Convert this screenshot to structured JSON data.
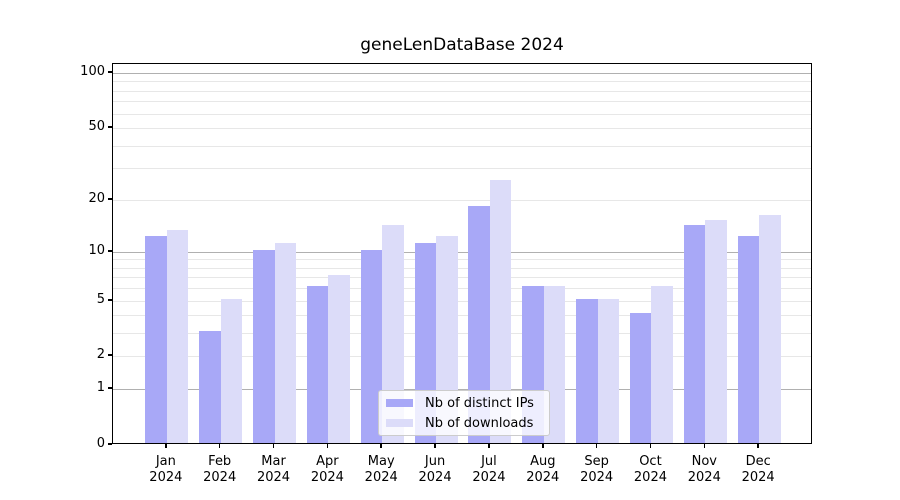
{
  "title": "geneLenDataBase 2024",
  "colors": {
    "distinct_ips_bar": "#a8a8f7",
    "downloads_bar": "#dcdcf9",
    "grid_major": "#b0b0b0",
    "grid_minor": "#e7e7e7",
    "axis": "#000000",
    "legend_border": "#cccccc",
    "legend_background": "rgba(255,255,255,0.8)"
  },
  "chart_data": {
    "type": "bar",
    "title": "geneLenDataBase 2024",
    "scale": "log1p",
    "grid": true,
    "legend_position": "lower center",
    "year": "2024",
    "categories": [
      "Jan",
      "Feb",
      "Mar",
      "Apr",
      "May",
      "Jun",
      "Jul",
      "Aug",
      "Sep",
      "Oct",
      "Nov",
      "Dec"
    ],
    "series": [
      {
        "name": "Nb of distinct IPs",
        "values": [
          12,
          3,
          10,
          6,
          10,
          11,
          18,
          6,
          5,
          4,
          14,
          12
        ]
      },
      {
        "name": "Nb of downloads",
        "values": [
          13,
          5,
          11,
          7,
          14,
          12,
          25,
          6,
          5,
          6,
          15,
          16
        ]
      }
    ],
    "xlabel": "",
    "ylabel": "",
    "ylim": [
      0,
      112
    ],
    "y_ticks": [
      0,
      1,
      2,
      5,
      10,
      20,
      50,
      100
    ],
    "y_minor_gridlines": [
      2,
      3,
      4,
      5,
      6,
      7,
      8,
      9,
      20,
      30,
      40,
      50,
      60,
      70,
      80,
      90
    ],
    "y_major_gridlines": [
      1,
      10,
      100
    ]
  }
}
